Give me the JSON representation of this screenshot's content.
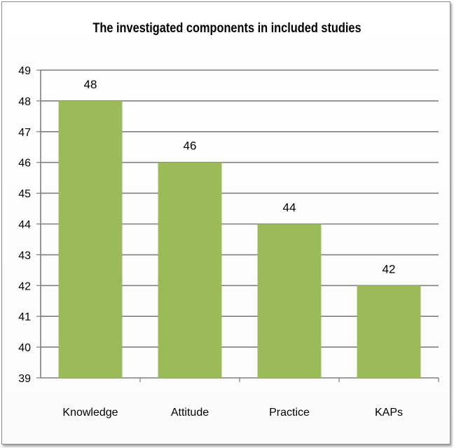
{
  "chart_data": {
    "type": "bar",
    "title": "The investigated components in included studies",
    "categories": [
      "Knowledge",
      "Attitude",
      "Practice",
      "KAPs"
    ],
    "values": [
      48,
      46,
      44,
      42
    ],
    "data_labels": [
      "48",
      "46",
      "44",
      "42"
    ],
    "xlabel": "",
    "ylabel": "",
    "ylim": [
      39,
      49
    ],
    "yticks": [
      "39",
      "40",
      "41",
      "42",
      "43",
      "44",
      "45",
      "46",
      "47",
      "48",
      "49"
    ],
    "grid": true,
    "legend": "none",
    "bar_color": "#9bbb59",
    "grid_color": "#7f7f7f"
  }
}
